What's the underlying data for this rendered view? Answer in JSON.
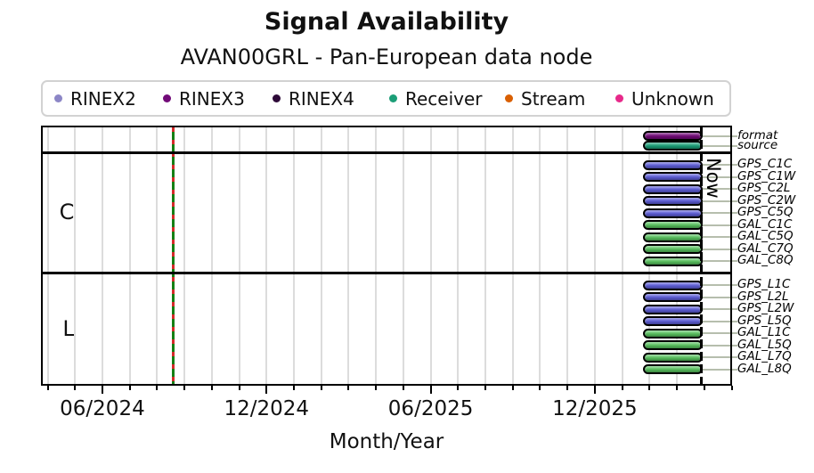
{
  "title": "Signal Availability",
  "subtitle": "AVAN00GRL - Pan-European data node",
  "legend": {
    "items": [
      {
        "label": "RINEX2",
        "color": "#8c86c6"
      },
      {
        "label": "RINEX3",
        "color": "#720b78"
      },
      {
        "label": "RINEX4",
        "color": "#2e0a38"
      },
      {
        "label": "Receiver",
        "color": "#1b9e77"
      },
      {
        "label": "Stream",
        "color": "#d95f02"
      },
      {
        "label": "Unknown",
        "color": "#e7298a"
      }
    ]
  },
  "chart_data": {
    "type": "timeline",
    "title": "Signal Availability",
    "subtitle": "AVAN00GRL - Pan-European data node",
    "xlabel": "Month/Year",
    "x_tick_labels": [
      "06/2024",
      "12/2024",
      "06/2025",
      "12/2025"
    ],
    "x_range": [
      "03/2024",
      "05/2026"
    ],
    "grid": "monthly-vertical",
    "now_label": "Now",
    "now_position": "04/2026",
    "event_marker": {
      "position": "08/2024",
      "style": "red-green-dashed-vertical-line"
    },
    "category_colors": {
      "GPS": "#5e5ed6",
      "GAL": "#58c05e",
      "RINEX3": "#720b78",
      "Receiver": "#1b9e77"
    },
    "y_sections": [
      {
        "label": "",
        "rows": [
          "format",
          "source"
        ]
      },
      {
        "label": "C",
        "rows": [
          "GPS_C1C",
          "GPS_C1W",
          "GPS_C2L",
          "GPS_C2W",
          "GPS_C5Q",
          "GAL_C1C",
          "GAL_C5Q",
          "GAL_C7Q",
          "GAL_C8Q"
        ]
      },
      {
        "label": "L",
        "rows": [
          "GPS_L1C",
          "GPS_L2L",
          "GPS_L2W",
          "GPS_L5Q",
          "GAL_L1C",
          "GAL_L5Q",
          "GAL_L7Q",
          "GAL_L8Q"
        ]
      }
    ],
    "rows": [
      {
        "label": "format",
        "section": "header",
        "category": "RINEX3",
        "start": "02/2026",
        "end": "now"
      },
      {
        "label": "source",
        "section": "header",
        "category": "Receiver",
        "start": "02/2026",
        "end": "now"
      },
      {
        "label": "GPS_C1C",
        "section": "C",
        "category": "GPS",
        "start": "02/2026",
        "end": "now"
      },
      {
        "label": "GPS_C1W",
        "section": "C",
        "category": "GPS",
        "start": "02/2026",
        "end": "now"
      },
      {
        "label": "GPS_C2L",
        "section": "C",
        "category": "GPS",
        "start": "02/2026",
        "end": "now"
      },
      {
        "label": "GPS_C2W",
        "section": "C",
        "category": "GPS",
        "start": "02/2026",
        "end": "now"
      },
      {
        "label": "GPS_C5Q",
        "section": "C",
        "category": "GPS",
        "start": "02/2026",
        "end": "now"
      },
      {
        "label": "GAL_C1C",
        "section": "C",
        "category": "GAL",
        "start": "02/2026",
        "end": "now"
      },
      {
        "label": "GAL_C5Q",
        "section": "C",
        "category": "GAL",
        "start": "02/2026",
        "end": "now"
      },
      {
        "label": "GAL_C7Q",
        "section": "C",
        "category": "GAL",
        "start": "02/2026",
        "end": "now"
      },
      {
        "label": "GAL_C8Q",
        "section": "C",
        "category": "GAL",
        "start": "02/2026",
        "end": "now"
      },
      {
        "label": "GPS_L1C",
        "section": "L",
        "category": "GPS",
        "start": "02/2026",
        "end": "now"
      },
      {
        "label": "GPS_L2L",
        "section": "L",
        "category": "GPS",
        "start": "02/2026",
        "end": "now"
      },
      {
        "label": "GPS_L2W",
        "section": "L",
        "category": "GPS",
        "start": "02/2026",
        "end": "now"
      },
      {
        "label": "GPS_L5Q",
        "section": "L",
        "category": "GPS",
        "start": "02/2026",
        "end": "now"
      },
      {
        "label": "GAL_L1C",
        "section": "L",
        "category": "GAL",
        "start": "02/2026",
        "end": "now"
      },
      {
        "label": "GAL_L5Q",
        "section": "L",
        "category": "GAL",
        "start": "02/2026",
        "end": "now"
      },
      {
        "label": "GAL_L7Q",
        "section": "L",
        "category": "GAL",
        "start": "02/2026",
        "end": "now"
      },
      {
        "label": "GAL_L8Q",
        "section": "L",
        "category": "GAL",
        "start": "02/2026",
        "end": "now"
      }
    ]
  }
}
